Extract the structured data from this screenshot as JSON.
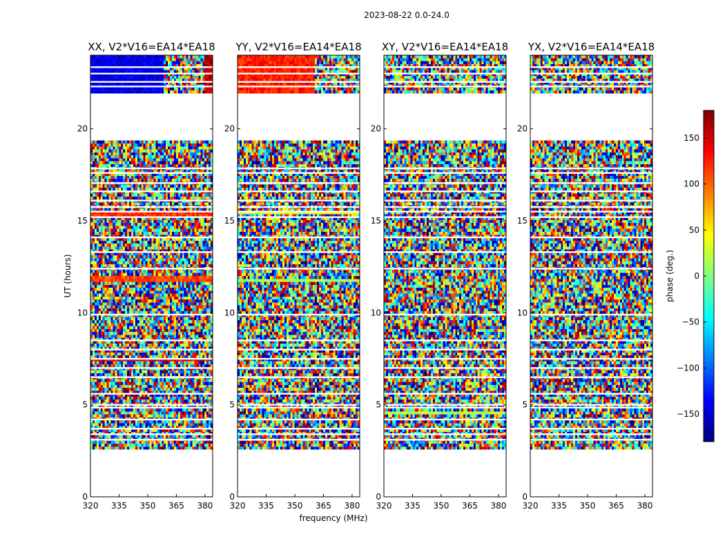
{
  "figure": {
    "suptitle": "2023-08-22 0.0-24.0",
    "xlabel": "frequency (MHz)",
    "ylabel": "UT (hours)"
  },
  "colorbar": {
    "label": "phase (deg.)",
    "range": [
      -180,
      180
    ],
    "ticks": [
      150,
      100,
      50,
      0,
      -50,
      -100,
      -150
    ],
    "tick_labels": [
      "150",
      "100",
      "50",
      "0",
      "−50",
      "−100",
      "−150"
    ],
    "colormap": "jet",
    "stops": [
      "#00007f",
      "#0000ff",
      "#007fff",
      "#00ffff",
      "#7fff7f",
      "#ffff00",
      "#ff7f00",
      "#ff0000",
      "#7f0000"
    ]
  },
  "chart_data": {
    "type": "heatmap",
    "xlim": [
      320,
      384
    ],
    "ylim": [
      0,
      24
    ],
    "xticks": [
      320,
      335,
      350,
      365,
      380
    ],
    "xtick_labels": [
      "320",
      "335",
      "350",
      "365",
      "380"
    ],
    "yticks": [
      0,
      5,
      10,
      15,
      20
    ],
    "ytick_labels": [
      "0",
      "5",
      "10",
      "15",
      "20"
    ],
    "panels": [
      {
        "title": "XX, V2*V16=EA14*EA18",
        "polarization": "XX"
      },
      {
        "title": "YY, V2*V16=EA14*EA18",
        "polarization": "YY"
      },
      {
        "title": "XY, V2*V16=EA14*EA18",
        "polarization": "XY"
      },
      {
        "title": "YX, V2*V16=EA14*EA18",
        "polarization": "YX"
      }
    ],
    "data_time_ranges_hours": [
      [
        2.55,
        19.3
      ],
      [
        22.0,
        24.0
      ]
    ],
    "flagged_rows_hours": [
      3.1,
      3.4,
      3.7,
      4.2,
      4.85,
      5.0,
      5.6,
      6.5,
      7.0,
      7.5,
      8.0,
      8.5,
      9.9,
      12.4,
      13.3,
      14.1,
      15.2,
      15.5,
      15.75,
      16.1,
      16.6,
      17.05,
      17.6,
      17.85,
      22.3,
      22.55,
      23.0,
      23.35
    ],
    "features": [
      {
        "panel": "XX",
        "t_start": 22.0,
        "t_end": 24.0,
        "f_start": 320,
        "f_end": 358,
        "phase_deg": -145
      },
      {
        "panel": "XX",
        "t_start": 22.0,
        "t_end": 24.0,
        "f_start": 380,
        "f_end": 384,
        "phase_deg": 160
      },
      {
        "panel": "YY",
        "t_start": 22.0,
        "t_end": 24.0,
        "f_start": 320,
        "f_end": 361,
        "phase_deg": 125
      },
      {
        "panel": "XX",
        "t_start": 15.2,
        "t_end": 15.55,
        "f_start": 320,
        "f_end": 384,
        "phase_deg": 120
      },
      {
        "panel": "YY",
        "t_start": 15.3,
        "t_end": 15.55,
        "f_start": 320,
        "f_end": 384,
        "phase_deg": 30
      },
      {
        "panel": "XX",
        "t_start": 11.6,
        "t_end": 12.0,
        "f_start": 320,
        "f_end": 384,
        "phase_deg": 110
      },
      {
        "panel": "YY",
        "t_start": 11.6,
        "t_end": 11.9,
        "f_start": 320,
        "f_end": 384,
        "phase_deg": 15
      },
      {
        "panel": "XX",
        "t_start": 7.3,
        "t_end": 7.45,
        "f_start": 320,
        "f_end": 384,
        "phase_deg": 140
      },
      {
        "panel": "XY",
        "t_start": 4.45,
        "t_end": 4.6,
        "f_start": 320,
        "f_end": 384,
        "phase_deg": 20
      }
    ]
  }
}
